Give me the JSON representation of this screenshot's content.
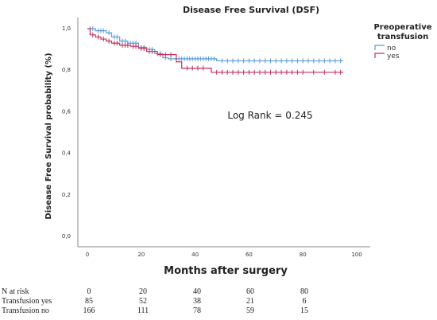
{
  "chart_data": {
    "type": "line",
    "subtype": "kaplan-meier-step",
    "title": "Disease Free Survival (DSF)",
    "xlabel": "Months after surgery",
    "ylabel": "Disease Free Survival probability (%)",
    "xlim": [
      0,
      100
    ],
    "ylim": [
      0,
      1
    ],
    "xticks": [
      0,
      20,
      40,
      60,
      80,
      100
    ],
    "yticks": [
      0.0,
      0.2,
      0.4,
      0.6,
      0.8,
      1.0
    ],
    "ytick_labels": [
      "0,0",
      "0,2",
      "0,4",
      "0,6",
      "0,8",
      "1,0"
    ],
    "grid": false,
    "legend": {
      "title_line1": "Preoperative",
      "title_line2": "transfusion",
      "position": "top-right"
    },
    "annotation": "Log Rank = 0.245",
    "series": [
      {
        "name": "no",
        "color": "#5b9bd5",
        "steps": [
          [
            0,
            1.0
          ],
          [
            3,
            0.99
          ],
          [
            7,
            0.98
          ],
          [
            9,
            0.96
          ],
          [
            12,
            0.94
          ],
          [
            15,
            0.93
          ],
          [
            19,
            0.91
          ],
          [
            22,
            0.9
          ],
          [
            25,
            0.88
          ],
          [
            28,
            0.86
          ],
          [
            30,
            0.855
          ],
          [
            48,
            0.845
          ],
          [
            95,
            0.845
          ]
        ],
        "censored": [
          1,
          2,
          4,
          5,
          6,
          8,
          10,
          11,
          13,
          14,
          16,
          17,
          18,
          20,
          21,
          23,
          24,
          26,
          27,
          29,
          31,
          33,
          34,
          35,
          36,
          37,
          38,
          39,
          40,
          41,
          42,
          43,
          44,
          45,
          46,
          47,
          50,
          52,
          54,
          56,
          58,
          60,
          62,
          64,
          66,
          68,
          70,
          72,
          74,
          76,
          78,
          80,
          82,
          84,
          86,
          88,
          90,
          92,
          94
        ]
      },
      {
        "name": "yes",
        "color": "#c0305a",
        "steps": [
          [
            0,
            1.0
          ],
          [
            1,
            0.97
          ],
          [
            3,
            0.96
          ],
          [
            5,
            0.95
          ],
          [
            7,
            0.94
          ],
          [
            9,
            0.93
          ],
          [
            12,
            0.92
          ],
          [
            16,
            0.915
          ],
          [
            19,
            0.905
          ],
          [
            22,
            0.89
          ],
          [
            26,
            0.875
          ],
          [
            33,
            0.84
          ],
          [
            35,
            0.81
          ],
          [
            46,
            0.79
          ],
          [
            95,
            0.79
          ]
        ],
        "censored": [
          2,
          4,
          6,
          8,
          10,
          11,
          13,
          14,
          15,
          17,
          18,
          20,
          21,
          23,
          24,
          27,
          29,
          31,
          37,
          39,
          41,
          43,
          48,
          50,
          52,
          54,
          56,
          58,
          60,
          62,
          64,
          66,
          68,
          70,
          72,
          74,
          76,
          78,
          80,
          84,
          88,
          92,
          94
        ]
      }
    ]
  },
  "risk_table": {
    "header": "N at risk",
    "times": [
      "0",
      "20",
      "40",
      "60",
      "80"
    ],
    "rows": [
      {
        "label": "Transfusion yes",
        "values": [
          "85",
          "52",
          "38",
          "21",
          "6"
        ]
      },
      {
        "label": "Transfusion no",
        "values": [
          "166",
          "111",
          "78",
          "59",
          "15"
        ]
      }
    ]
  }
}
